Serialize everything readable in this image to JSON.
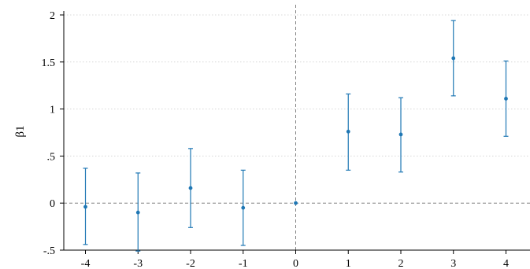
{
  "chart_data": {
    "type": "scatter",
    "subtype": "coefficient plot with confidence intervals",
    "title": "",
    "xlabel": "",
    "ylabel": "β1",
    "xlim": [
      -4,
      4
    ],
    "ylim": [
      -0.5,
      2
    ],
    "xticks": [
      -4,
      -3,
      -2,
      -1,
      0,
      1,
      2,
      3,
      4
    ],
    "xtick_labels": [
      "-4",
      "-3",
      "-2",
      "-1",
      "0",
      "1",
      "2",
      "3",
      "4"
    ],
    "yticks": [
      -0.5,
      0,
      0.5,
      1,
      1.5,
      2
    ],
    "ytick_labels": [
      "-.5",
      "0",
      ".5",
      "1",
      "1.5",
      "2"
    ],
    "grid": "horizontal dotted",
    "reference_lines": {
      "y": 0,
      "x": 0,
      "style": "dashed"
    },
    "series": [
      {
        "points": [
          {
            "x": -4,
            "y": -0.04,
            "lower": -0.44,
            "upper": 0.37
          },
          {
            "x": -3,
            "y": -0.1,
            "lower": -0.51,
            "upper": 0.32
          },
          {
            "x": -2,
            "y": 0.16,
            "lower": -0.26,
            "upper": 0.58
          },
          {
            "x": -1,
            "y": -0.05,
            "lower": -0.45,
            "upper": 0.35
          },
          {
            "x": 0,
            "y": 0.0,
            "lower": 0.0,
            "upper": 0.0
          },
          {
            "x": 1,
            "y": 0.76,
            "lower": 0.35,
            "upper": 1.16
          },
          {
            "x": 2,
            "y": 0.73,
            "lower": 0.33,
            "upper": 1.12
          },
          {
            "x": 3,
            "y": 1.54,
            "lower": 1.14,
            "upper": 1.94
          },
          {
            "x": 4,
            "y": 1.11,
            "lower": 0.71,
            "upper": 1.51
          }
        ]
      }
    ],
    "colors": {
      "series": "#1f77b4",
      "grid": "#d8d8d8",
      "reference": "#808080",
      "axis": "#000000"
    }
  }
}
